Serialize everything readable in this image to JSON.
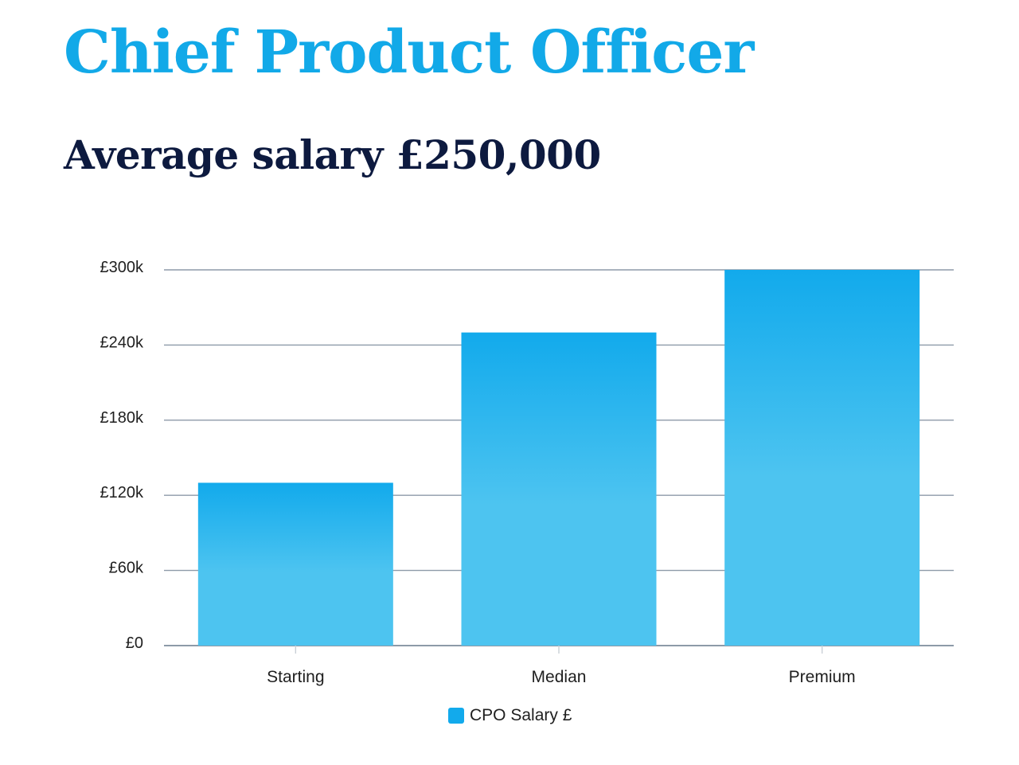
{
  "header": {
    "title": "Chief Product Officer",
    "subtitle": "Average salary £250,000"
  },
  "colors": {
    "title": "#12a9e8",
    "subtitle": "#0d1a3f",
    "bar_top": "#12aaec",
    "bar_bottom": "#4dc4f0",
    "grid": "#8d9aa8",
    "axis_text": "#1f1f1f"
  },
  "chart_data": {
    "type": "bar",
    "categories": [
      "Starting",
      "Median",
      "Premium"
    ],
    "series": [
      {
        "name": "CPO Salary £",
        "values": [
          130000,
          250000,
          300000
        ]
      }
    ],
    "ylim": [
      0,
      300000
    ],
    "yticks": [
      0,
      60000,
      120000,
      180000,
      240000,
      300000
    ],
    "ytick_labels": [
      "£0",
      "£60k",
      "£120k",
      "£180k",
      "£240k",
      "£300k"
    ],
    "grid": true,
    "legend": "bottom-center",
    "xlabel": "",
    "ylabel": ""
  }
}
